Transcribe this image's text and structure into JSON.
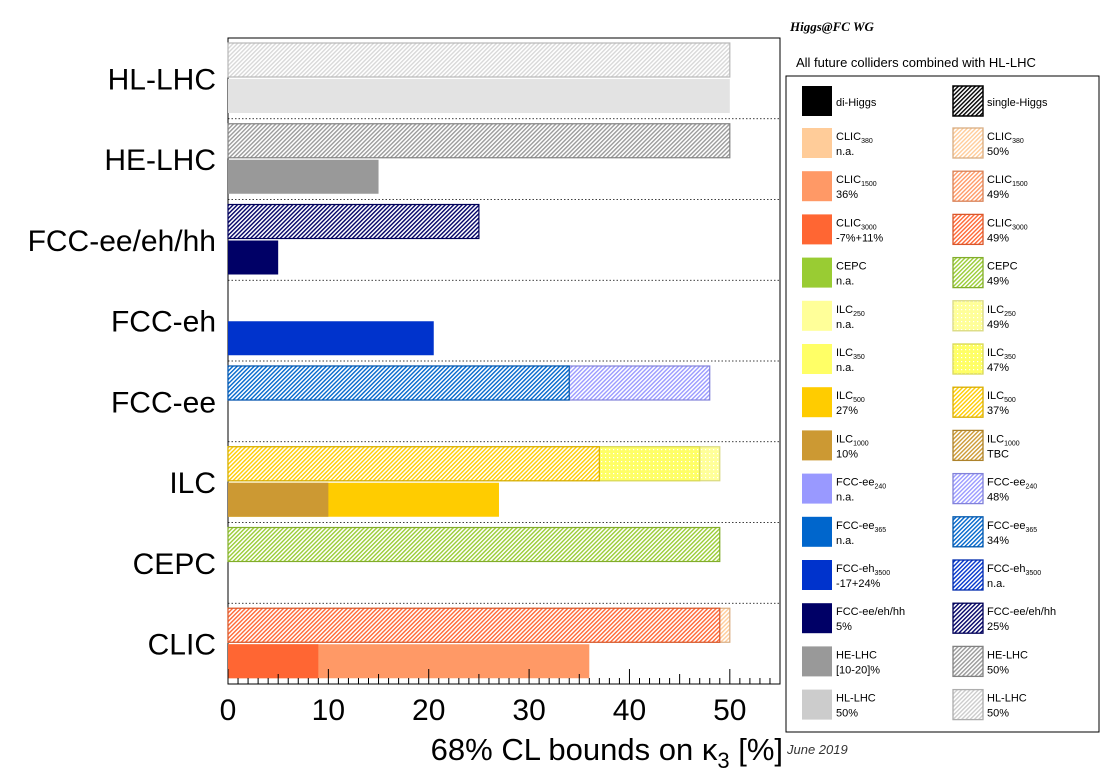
{
  "chart_data": {
    "type": "bar",
    "orientation": "horizontal",
    "grouping": "two rows per collider: single-Higgs (hatched, top) and di-Higgs (solid, bottom)",
    "header": "Higgs@FC WG",
    "date": "June 2019",
    "xlabel": {
      "prefix": "68% CL bounds on ",
      "symbol": "κ",
      "sub": "3",
      "suffix": " [%]"
    },
    "xlim": [
      0,
      55
    ],
    "xticks": [
      0,
      10,
      20,
      30,
      40,
      50
    ],
    "grid": "dotted separators between collider groups",
    "categories": [
      "HL-LHC",
      "HE-LHC",
      "FCC-ee/eh/hh",
      "FCC-eh",
      "FCC-ee",
      "ILC",
      "CEPC",
      "CLIC"
    ],
    "bars": [
      {
        "category": "HL-LHC",
        "row": "single",
        "stage": "HL-LHC",
        "start": 0,
        "end": 50,
        "pattern": "hatch",
        "color": "#d8d8d8"
      },
      {
        "category": "HL-LHC",
        "row": "di",
        "stage": "HL-LHC",
        "start": 0,
        "end": 50,
        "pattern": "solid",
        "color": "#e3e3e3"
      },
      {
        "category": "HE-LHC",
        "row": "single",
        "stage": "HE-LHC",
        "start": 0,
        "end": 50,
        "pattern": "hatch",
        "color": "#9a9a9a"
      },
      {
        "category": "HE-LHC",
        "row": "di",
        "stage": "HE-LHC",
        "start": 0,
        "end": 15,
        "pattern": "solid",
        "color": "#999999"
      },
      {
        "category": "FCC-ee/eh/hh",
        "row": "single",
        "stage": "FCC-ee/eh/hh",
        "start": 0,
        "end": 25,
        "pattern": "hatch",
        "color": "#000066"
      },
      {
        "category": "FCC-ee/eh/hh",
        "row": "di",
        "stage": "FCC-ee/eh/hh",
        "start": 0,
        "end": 5,
        "pattern": "solid",
        "color": "#000066"
      },
      {
        "category": "FCC-eh",
        "row": "di",
        "stage": "FCC-eh3500",
        "start": 0,
        "end": 20.5,
        "pattern": "solid",
        "color": "#0033cc"
      },
      {
        "category": "FCC-ee",
        "row": "single",
        "stage": "FCC-ee240",
        "start": 0,
        "end": 48,
        "pattern": "hatch",
        "color": "#9999ff"
      },
      {
        "category": "FCC-ee",
        "row": "single",
        "stage": "FCC-ee365",
        "start": 0,
        "end": 34,
        "pattern": "hatch",
        "color": "#0066cc"
      },
      {
        "category": "ILC",
        "row": "single",
        "stage": "ILC250",
        "start": 0,
        "end": 49,
        "pattern": "dots",
        "color": "#ffff99"
      },
      {
        "category": "ILC",
        "row": "single",
        "stage": "ILC350",
        "start": 0,
        "end": 47,
        "pattern": "dots",
        "color": "#ffff66"
      },
      {
        "category": "ILC",
        "row": "single",
        "stage": "ILC500",
        "start": 0,
        "end": 37,
        "pattern": "hatch",
        "color": "#ffcc00"
      },
      {
        "category": "ILC",
        "row": "di",
        "stage": "ILC500",
        "start": 0,
        "end": 27,
        "pattern": "solid",
        "color": "#ffcc00"
      },
      {
        "category": "ILC",
        "row": "di",
        "stage": "ILC1000",
        "start": 0,
        "end": 10,
        "pattern": "solid",
        "color": "#cc9933"
      },
      {
        "category": "CEPC",
        "row": "single",
        "stage": "CEPC",
        "start": 0,
        "end": 49,
        "pattern": "hatch",
        "color": "#99cc33"
      },
      {
        "category": "CLIC",
        "row": "single",
        "stage": "CLIC380",
        "start": 0,
        "end": 50,
        "pattern": "hatch",
        "color": "#ffcc99"
      },
      {
        "category": "CLIC",
        "row": "single",
        "stage": "CLIC3000",
        "start": 0,
        "end": 49,
        "pattern": "hatch",
        "color": "#ff6633"
      },
      {
        "category": "CLIC",
        "row": "di",
        "stage": "CLIC1500",
        "start": 0,
        "end": 36,
        "pattern": "solid",
        "color": "#ff9966"
      },
      {
        "category": "CLIC",
        "row": "di",
        "stage": "CLIC3000",
        "start": 0,
        "end": 9,
        "pattern": "solid",
        "color": "#ff6633"
      }
    ],
    "legend": {
      "title": "All future colliders combined with HL-LHC",
      "placement": "right",
      "header": [
        {
          "label": "di-Higgs",
          "pattern": "solid",
          "color": "#000000"
        },
        {
          "label": "single-Higgs",
          "pattern": "hatch",
          "color": "#000000"
        }
      ],
      "entries": [
        {
          "name": "CLIC",
          "sub": "380",
          "color": "#ffcc99",
          "di": "n.a.",
          "single": "50%"
        },
        {
          "name": "CLIC",
          "sub": "1500",
          "color": "#ff9966",
          "di": "36%",
          "single": "49%"
        },
        {
          "name": "CLIC",
          "sub": "3000",
          "color": "#ff6633",
          "di": "-7%+11%",
          "single": "49%"
        },
        {
          "name": "CEPC",
          "sub": "",
          "color": "#99cc33",
          "di": "n.a.",
          "single": "49%"
        },
        {
          "name": "ILC",
          "sub": "250",
          "color": "#ffff99",
          "di": "n.a.",
          "single": "49%",
          "single_pattern": "dots"
        },
        {
          "name": "ILC",
          "sub": "350",
          "color": "#ffff66",
          "di": "n.a.",
          "single": "47%",
          "single_pattern": "dots"
        },
        {
          "name": "ILC",
          "sub": "500",
          "color": "#ffcc00",
          "di": "27%",
          "single": "37%"
        },
        {
          "name": "ILC",
          "sub": "1000",
          "color": "#cc9933",
          "di": "10%",
          "single": "TBC"
        },
        {
          "name": "FCC-ee",
          "sub": "240",
          "color": "#9999ff",
          "di": "n.a.",
          "single": "48%"
        },
        {
          "name": "FCC-ee",
          "sub": "365",
          "color": "#0066cc",
          "di": "n.a.",
          "single": "34%"
        },
        {
          "name": "FCC-eh",
          "sub": "3500",
          "color": "#0033cc",
          "di": "-17+24%",
          "single": "n.a."
        },
        {
          "name": "FCC-ee/eh/hh",
          "sub": "",
          "color": "#000066",
          "di": "5%",
          "single": "25%"
        },
        {
          "name": "HE-LHC",
          "sub": "",
          "color": "#999999",
          "di": "[10-20]%",
          "single": "50%"
        },
        {
          "name": "HL-LHC",
          "sub": "",
          "color": "#cccccc",
          "di": "50%",
          "single": "50%"
        }
      ]
    }
  }
}
